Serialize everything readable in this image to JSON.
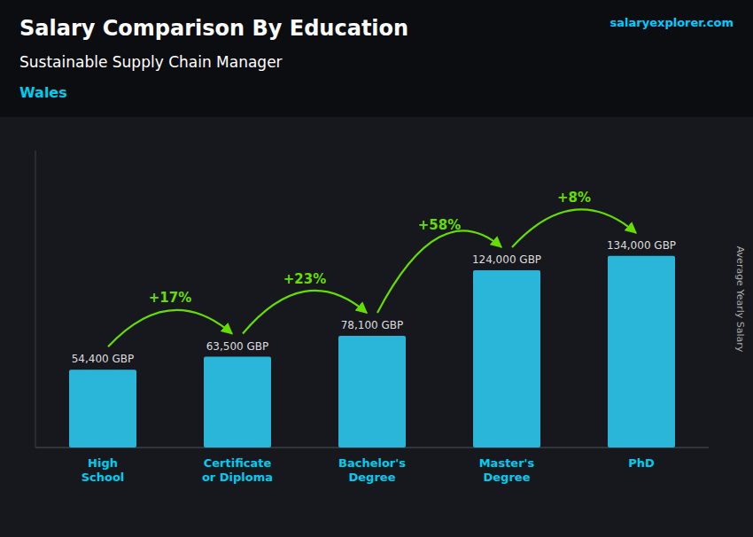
{
  "chart_data": {
    "type": "bar",
    "title": "Salary Comparison By Education",
    "subtitle": "Sustainable Supply Chain Manager",
    "annotations": [
      "Wales",
      "salaryexplorer.com"
    ],
    "ylabel": "Average Yearly Salary",
    "categories": [
      "High\nSchool",
      "Certificate\nor Diploma",
      "Bachelor's\nDegree",
      "Master's\nDegree",
      "PhD"
    ],
    "values": [
      54400,
      63500,
      78100,
      124000,
      134000
    ],
    "value_labels": [
      "54,400 GBP",
      "63,500 GBP",
      "78,100 GBP",
      "124,000 GBP",
      "134,000 GBP"
    ],
    "change_labels": [
      "+17%",
      "+23%",
      "+58%",
      "+8%"
    ],
    "data_labels": true,
    "color": "#29b6d8",
    "ylim": [
      0,
      207700
    ],
    "grid": false,
    "tick_labels": "x"
  }
}
